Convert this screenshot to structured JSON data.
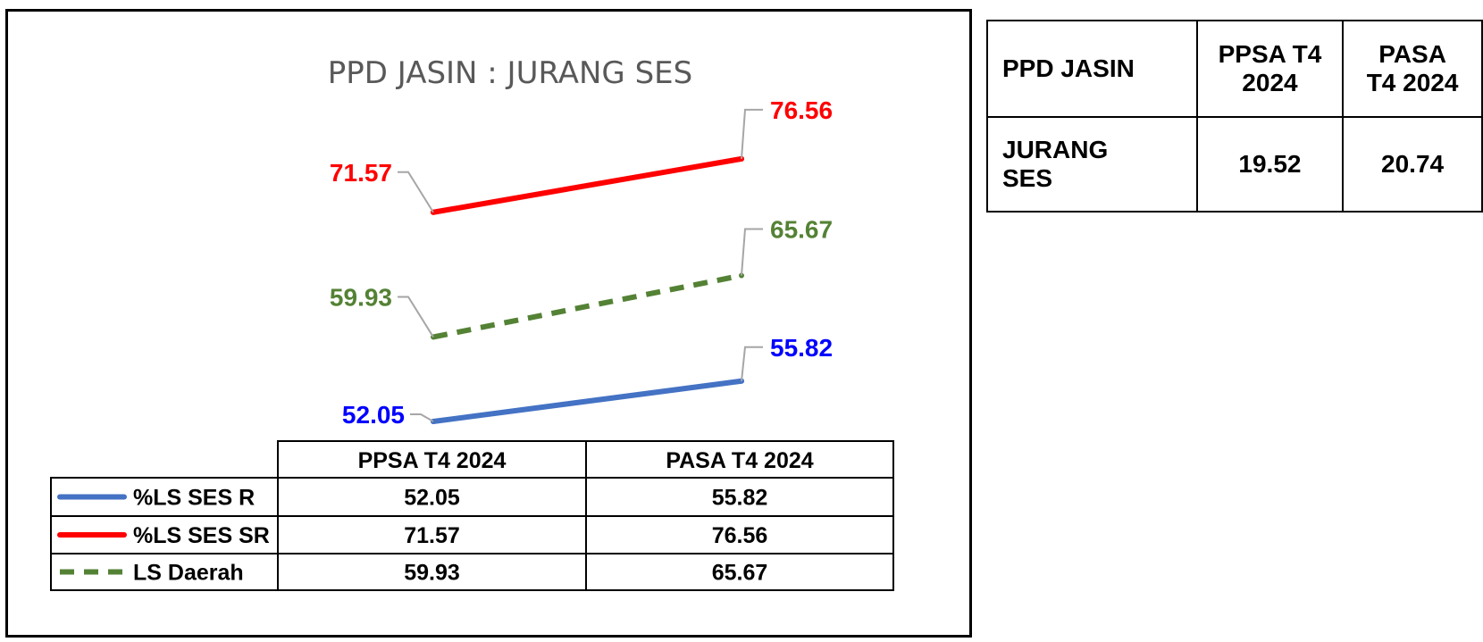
{
  "chart_data": {
    "type": "line",
    "title": "PPD JASIN : JURANG SES",
    "categories": [
      "PPSA T4 2024",
      "PASA T4 2024"
    ],
    "series": [
      {
        "name": "%LS SES R",
        "values": [
          52.05,
          55.82
        ],
        "color": "#4472C4",
        "label_color": "#0000FF",
        "dash": false
      },
      {
        "name": "%LS SES SR",
        "values": [
          71.57,
          76.56
        ],
        "color": "#FF0000",
        "label_color": "#FF0000",
        "dash": false
      },
      {
        "name": "LS Daerah",
        "values": [
          59.93,
          65.67
        ],
        "color": "#548235",
        "label_color": "#548235",
        "dash": true
      }
    ],
    "data_table": {
      "rows": [
        {
          "legend": "%LS SES R",
          "v1": "52.05",
          "v2": "55.82"
        },
        {
          "legend": "%LS SES SR",
          "v1": "71.57",
          "v2": "76.56"
        },
        {
          "legend": "LS Daerah",
          "v1": "59.93",
          "v2": "65.67"
        }
      ]
    }
  },
  "summary_table": {
    "header": {
      "c1": "PPD JASIN",
      "c2a": "PPSA T4",
      "c2b": "2024",
      "c3a": "PASA",
      "c3b": "T4 2024"
    },
    "row": {
      "c1a": "JURANG",
      "c1b": "SES",
      "c2": "19.52",
      "c3": "20.74"
    }
  }
}
